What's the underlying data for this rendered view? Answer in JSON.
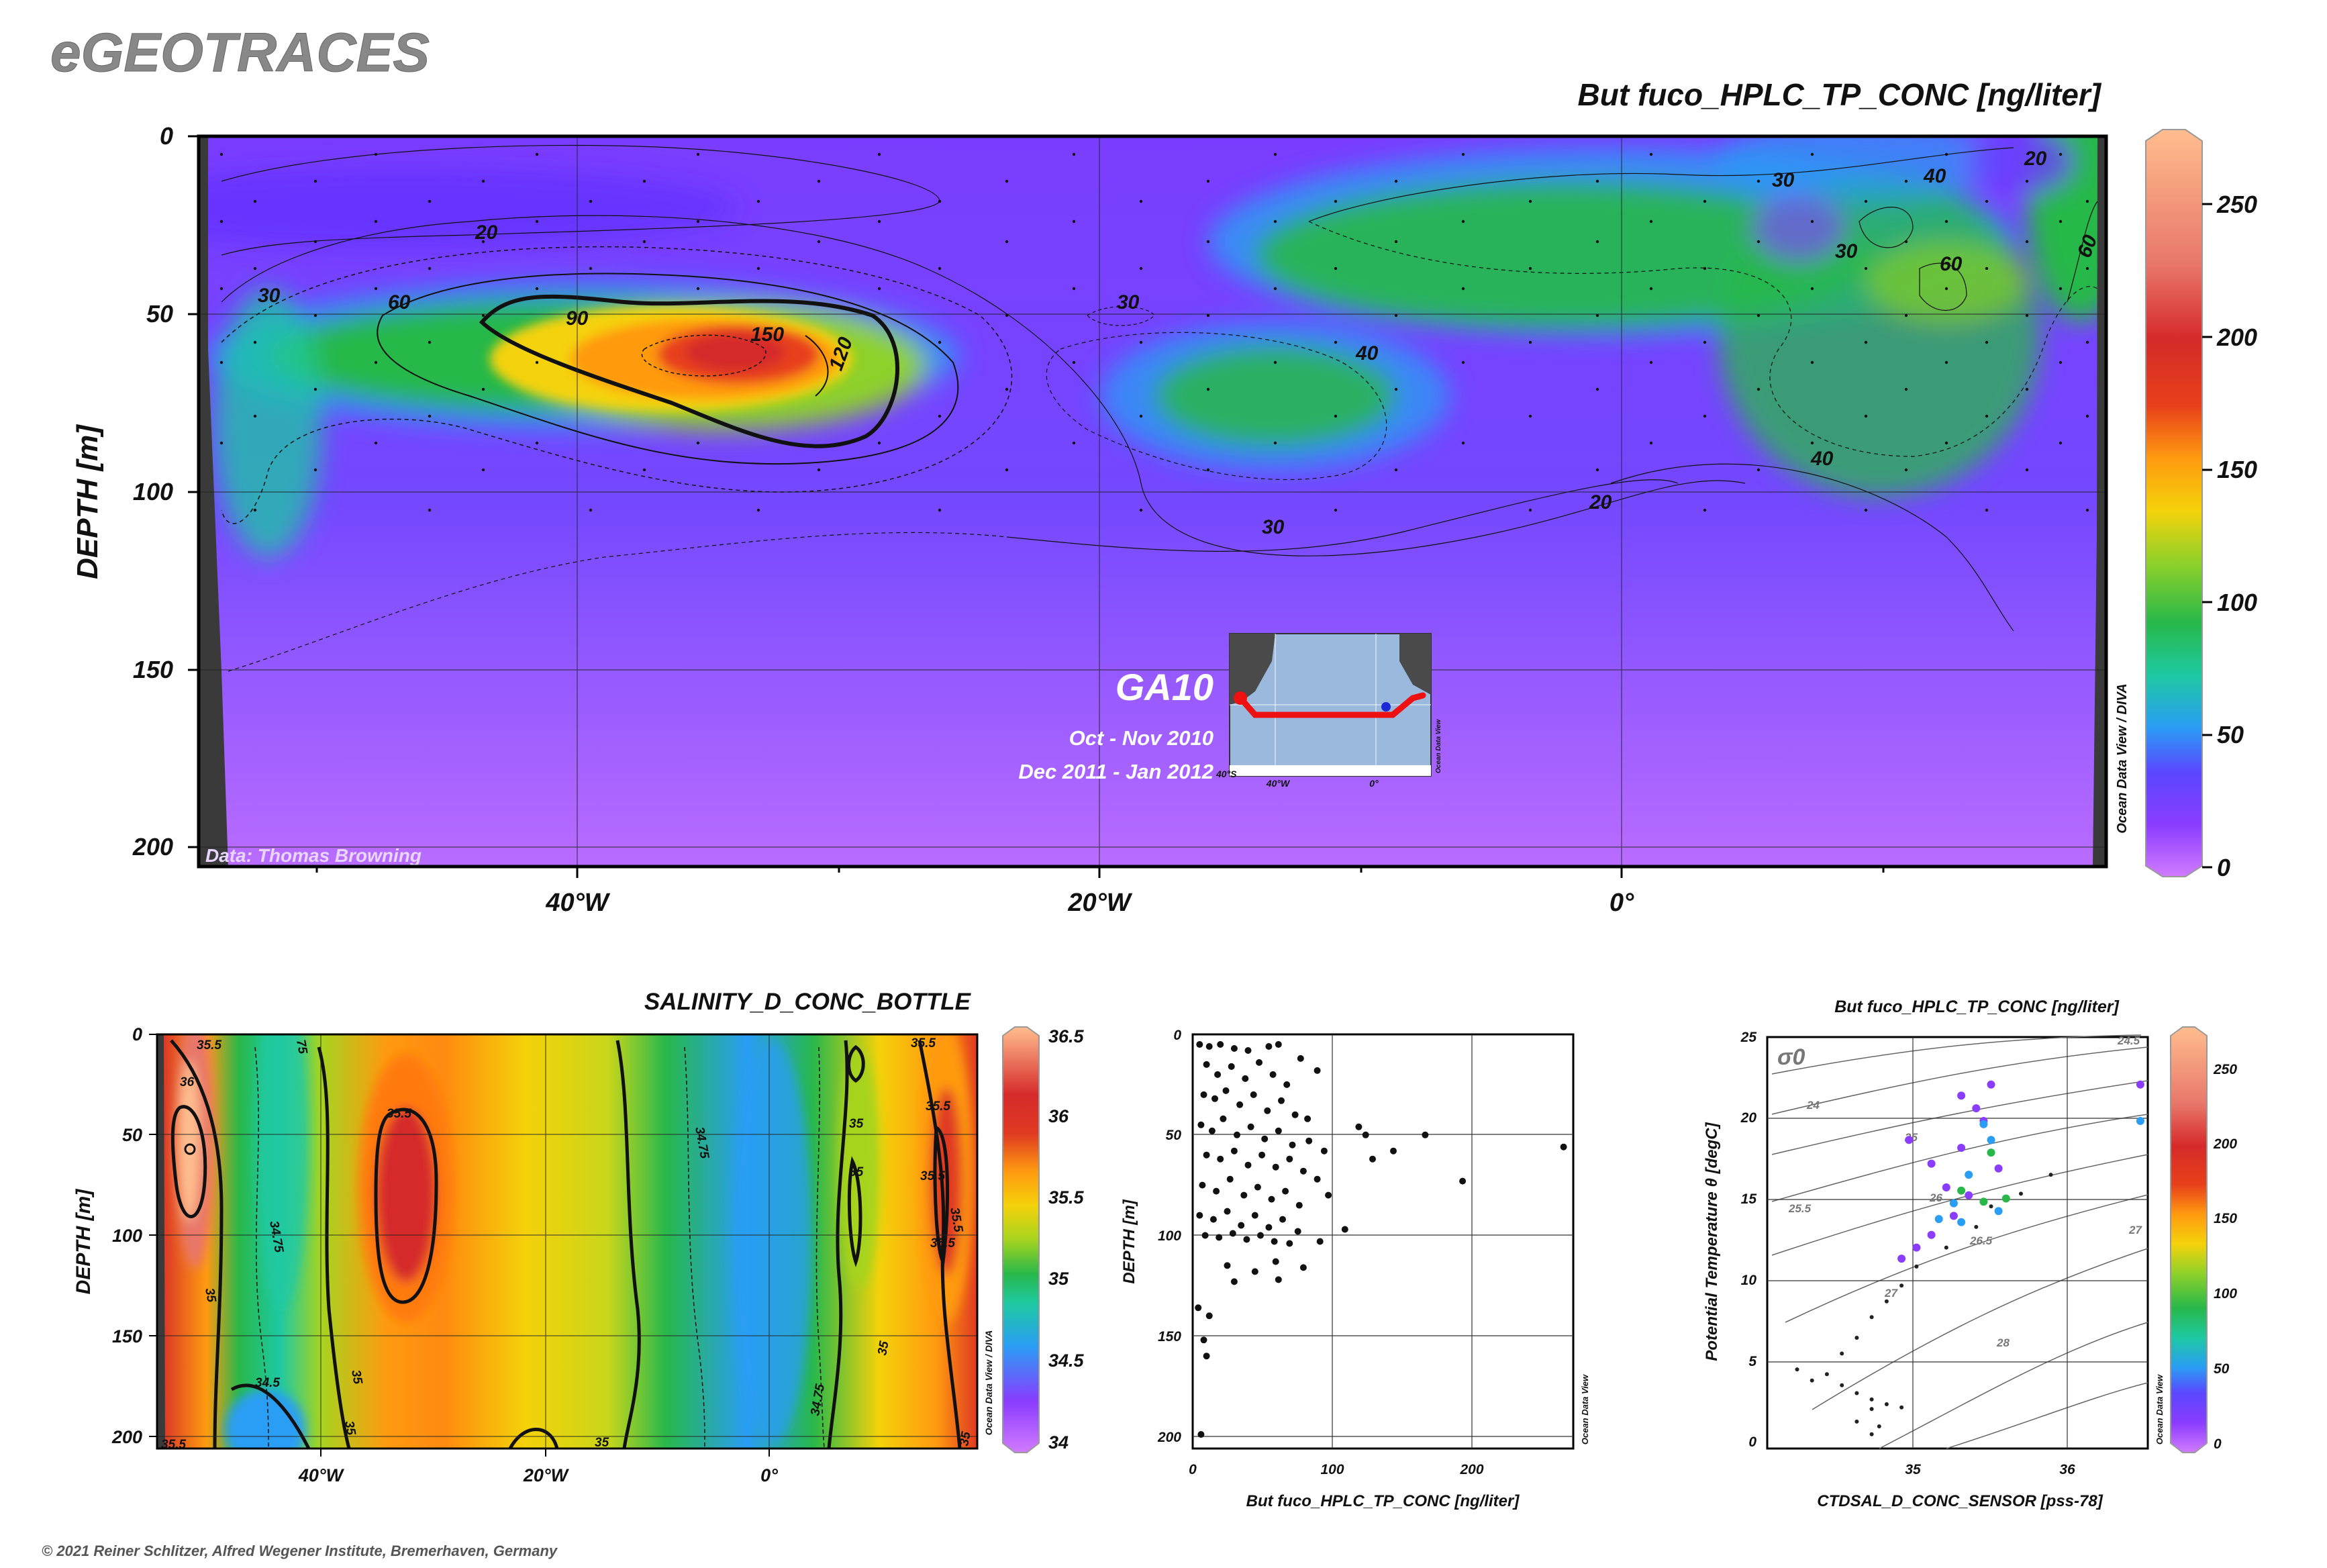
{
  "brand": "eGEOTRACES",
  "copyright": "© 2021 Reiner Schlitzer, Alfred Wegener Institute, Bremerhaven, Germany",
  "main_section": {
    "title": "But fuco_HPLC_TP_CONC [ng/liter]",
    "ylabel": "DEPTH [m]",
    "y_ticks": [
      "0",
      "50",
      "100",
      "150",
      "200"
    ],
    "x_ticks": [
      "40°W",
      "20°W",
      "0°"
    ],
    "colorbar_ticks": [
      "0",
      "50",
      "100",
      "150",
      "200",
      "250"
    ],
    "credit": "Data: Thomas Browning",
    "odv_label": "Ocean Data View / DIVA",
    "inset": {
      "cruise": "GA10",
      "period1": "Oct - Nov 2010",
      "period2": "Dec 2011 - Jan 2012",
      "lon_ticks": [
        "40°W",
        "0°"
      ],
      "lat_tick": "40°S",
      "odv_label": "Ocean Data View"
    },
    "contour_labels": [
      "20",
      "30",
      "60",
      "90",
      "150",
      "120",
      "30",
      "40",
      "30",
      "20",
      "30",
      "40",
      "30",
      "60",
      "60",
      "40",
      "20"
    ]
  },
  "salinity_section": {
    "title": "SALINITY_D_CONC_BOTTLE",
    "ylabel": "DEPTH [m]",
    "y_ticks": [
      "0",
      "50",
      "100",
      "150",
      "200"
    ],
    "x_ticks": [
      "40°W",
      "20°W",
      "0°"
    ],
    "colorbar_ticks": [
      "34",
      "34.5",
      "35",
      "35.5",
      "36",
      "36.5"
    ],
    "odv_label": "Ocean Data View / DIVA",
    "contour_labels": [
      "36",
      "35.5",
      "35.5",
      "34.75",
      "35",
      "34.5",
      "35",
      "35",
      "34.75",
      "35",
      "35",
      "35.5",
      "35.5",
      "35.5",
      "35",
      "35.5",
      "34.75",
      "35",
      "35",
      "35.5",
      "35.5",
      "75"
    ]
  },
  "profile_plot": {
    "ylabel": "DEPTH [m]",
    "xlabel": "But fuco_HPLC_TP_CONC [ng/liter]",
    "y_ticks": [
      "0",
      "50",
      "100",
      "150",
      "200"
    ],
    "x_ticks": [
      "0",
      "100",
      "200"
    ],
    "odv_label": "Ocean Data View"
  },
  "ts_plot": {
    "title": "But fuco_HPLC_TP_CONC [ng/liter]",
    "ylabel": "Potential Temperature θ [degC]",
    "xlabel": "CTDSAL_D_CONC_SENSOR [pss-78]",
    "y_ticks": [
      "0",
      "5",
      "10",
      "15",
      "20",
      "25"
    ],
    "x_ticks": [
      "35",
      "36"
    ],
    "sigma_label": "σ0",
    "isopycnal_labels": [
      "24.5",
      "24",
      "25",
      "25.5",
      "26",
      "26.5",
      "27",
      "27",
      "28"
    ],
    "colorbar_ticks": [
      "0",
      "50",
      "100",
      "150",
      "200",
      "250"
    ],
    "odv_label": "Ocean Data View"
  },
  "chart_data": [
    {
      "type": "heatmap",
      "title": "But fuco_HPLC_TP_CONC [ng/liter]",
      "xlabel": "",
      "ylabel": "DEPTH [m]",
      "xlim": [
        -55,
        18
      ],
      "ylim": [
        206,
        0
      ],
      "colorbar": {
        "min": 0,
        "max": 275
      },
      "maxima": [
        {
          "lon": -34,
          "depth": 62,
          "value": 150
        },
        {
          "lon": -26,
          "depth": 70,
          "value": 120
        },
        {
          "lon": -13,
          "depth": 78,
          "value": 50
        },
        {
          "lon": -52,
          "depth": 100,
          "value": 50
        },
        {
          "lon": 12,
          "depth": 40,
          "value": 60
        },
        {
          "lon": 17.5,
          "depth": 35,
          "value": 60
        }
      ]
    },
    {
      "type": "heatmap",
      "title": "SALINITY_D_CONC_BOTTLE",
      "xlabel": "",
      "ylabel": "DEPTH [m]",
      "xlim": [
        -54,
        10
      ],
      "ylim": [
        206,
        0
      ],
      "colorbar": {
        "min": 34,
        "max": 36.5
      },
      "maxima": [
        {
          "lon": -51,
          "depth": 60,
          "value": 36.0
        },
        {
          "lon": -30,
          "depth": 90,
          "value": 35.6
        },
        {
          "lon": 8,
          "depth": 40,
          "value": 35.6
        }
      ]
    },
    {
      "type": "scatter",
      "xlabel": "But fuco_HPLC_TP_CONC [ng/liter]",
      "ylabel": "DEPTH [m]",
      "xlim": [
        0,
        275
      ],
      "ylim": [
        206,
        0
      ],
      "points": [
        [
          5,
          5
        ],
        [
          12,
          6
        ],
        [
          20,
          5
        ],
        [
          30,
          7
        ],
        [
          40,
          8
        ],
        [
          55,
          6
        ],
        [
          62,
          5
        ],
        [
          78,
          12
        ],
        [
          90,
          18
        ],
        [
          10,
          15
        ],
        [
          18,
          20
        ],
        [
          28,
          16
        ],
        [
          38,
          22
        ],
        [
          48,
          14
        ],
        [
          58,
          20
        ],
        [
          68,
          25
        ],
        [
          8,
          30
        ],
        [
          16,
          32
        ],
        [
          24,
          28
        ],
        [
          34,
          35
        ],
        [
          44,
          30
        ],
        [
          54,
          38
        ],
        [
          64,
          33
        ],
        [
          74,
          40
        ],
        [
          83,
          42
        ],
        [
          6,
          45
        ],
        [
          14,
          48
        ],
        [
          22,
          42
        ],
        [
          32,
          50
        ],
        [
          42,
          46
        ],
        [
          52,
          52
        ],
        [
          62,
          48
        ],
        [
          72,
          55
        ],
        [
          84,
          53
        ],
        [
          95,
          58
        ],
        [
          120,
          46
        ],
        [
          125,
          50
        ],
        [
          145,
          58
        ],
        [
          130,
          62
        ],
        [
          168,
          50
        ],
        [
          268,
          56
        ],
        [
          195,
          73
        ],
        [
          10,
          60
        ],
        [
          20,
          62
        ],
        [
          30,
          58
        ],
        [
          40,
          65
        ],
        [
          50,
          60
        ],
        [
          60,
          66
        ],
        [
          70,
          62
        ],
        [
          80,
          68
        ],
        [
          90,
          72
        ],
        [
          7,
          75
        ],
        [
          17,
          78
        ],
        [
          27,
          72
        ],
        [
          37,
          80
        ],
        [
          47,
          76
        ],
        [
          57,
          82
        ],
        [
          67,
          78
        ],
        [
          77,
          85
        ],
        [
          98,
          80
        ],
        [
          5,
          90
        ],
        [
          15,
          92
        ],
        [
          25,
          88
        ],
        [
          35,
          95
        ],
        [
          45,
          90
        ],
        [
          55,
          96
        ],
        [
          65,
          92
        ],
        [
          76,
          98
        ],
        [
          110,
          97
        ],
        [
          9,
          100
        ],
        [
          19,
          101
        ],
        [
          29,
          99
        ],
        [
          39,
          102
        ],
        [
          49,
          100
        ],
        [
          59,
          103
        ],
        [
          70,
          104
        ],
        [
          92,
          103
        ],
        [
          25,
          115
        ],
        [
          45,
          118
        ],
        [
          60,
          113
        ],
        [
          80,
          116
        ],
        [
          30,
          123
        ],
        [
          62,
          122
        ],
        [
          4,
          136
        ],
        [
          12,
          140
        ],
        [
          8,
          152
        ],
        [
          10,
          160
        ],
        [
          6,
          199
        ]
      ]
    },
    {
      "type": "scatter",
      "xlabel": "CTDSAL_D_CONC_SENSOR [pss-78]",
      "ylabel": "Potential Temperature θ [degC]",
      "xlim": [
        34.0,
        36.55
      ],
      "ylim": [
        -0.5,
        25.5
      ],
      "color_by": "But fuco_HPLC_TP_CONC [ng/liter]",
      "colorbar": {
        "min": 0,
        "max": 275
      },
      "groups": [
        {
          "label": "",
          "color": "#222222",
          "points": [
            [
              34.2,
              4.5
            ],
            [
              34.3,
              3.8
            ],
            [
              34.4,
              4.2
            ],
            [
              34.5,
              3.5
            ],
            [
              34.6,
              3.0
            ],
            [
              34.7,
              2.6
            ],
            [
              34.8,
              2.3
            ],
            [
              34.9,
              2.1
            ],
            [
              34.7,
              2.0
            ],
            [
              34.6,
              1.2
            ],
            [
              34.7,
              0.4
            ],
            [
              34.75,
              0.9
            ],
            [
              34.5,
              5.5
            ],
            [
              34.6,
              6.5
            ],
            [
              34.7,
              7.8
            ],
            [
              34.8,
              8.8
            ],
            [
              34.9,
              9.8
            ],
            [
              35.0,
              11.0
            ],
            [
              35.2,
              12.2
            ],
            [
              35.4,
              13.5
            ],
            [
              35.5,
              14.8
            ],
            [
              35.7,
              15.6
            ],
            [
              35.9,
              16.8
            ]
          ]
        },
        {
          "label": "",
          "color": "#8a3cff",
          "points": [
            [
              34.95,
              19.0
            ],
            [
              35.1,
              17.5
            ],
            [
              35.3,
              18.5
            ],
            [
              35.45,
              20.2
            ],
            [
              35.5,
              22.5
            ],
            [
              35.4,
              21.0
            ],
            [
              35.25,
              14.2
            ],
            [
              35.35,
              15.5
            ],
            [
              35.1,
              13.0
            ],
            [
              35.0,
              12.2
            ],
            [
              35.2,
              16.0
            ],
            [
              35.55,
              17.2
            ],
            [
              36.5,
              22.5
            ],
            [
              35.3,
              21.8
            ],
            [
              34.9,
              11.5
            ]
          ]
        },
        {
          "label": "",
          "color": "#2a9df4",
          "points": [
            [
              35.15,
              14.0
            ],
            [
              35.25,
              15.0
            ],
            [
              35.35,
              16.8
            ],
            [
              35.45,
              20.0
            ],
            [
              35.5,
              19.0
            ],
            [
              35.3,
              13.8
            ],
            [
              35.55,
              14.5
            ],
            [
              36.5,
              20.2
            ]
          ]
        },
        {
          "label": "",
          "color": "#28b84a",
          "points": [
            [
              35.45,
              15.1
            ],
            [
              35.6,
              15.3
            ],
            [
              35.3,
              15.8
            ],
            [
              35.5,
              18.2
            ]
          ]
        }
      ]
    }
  ]
}
